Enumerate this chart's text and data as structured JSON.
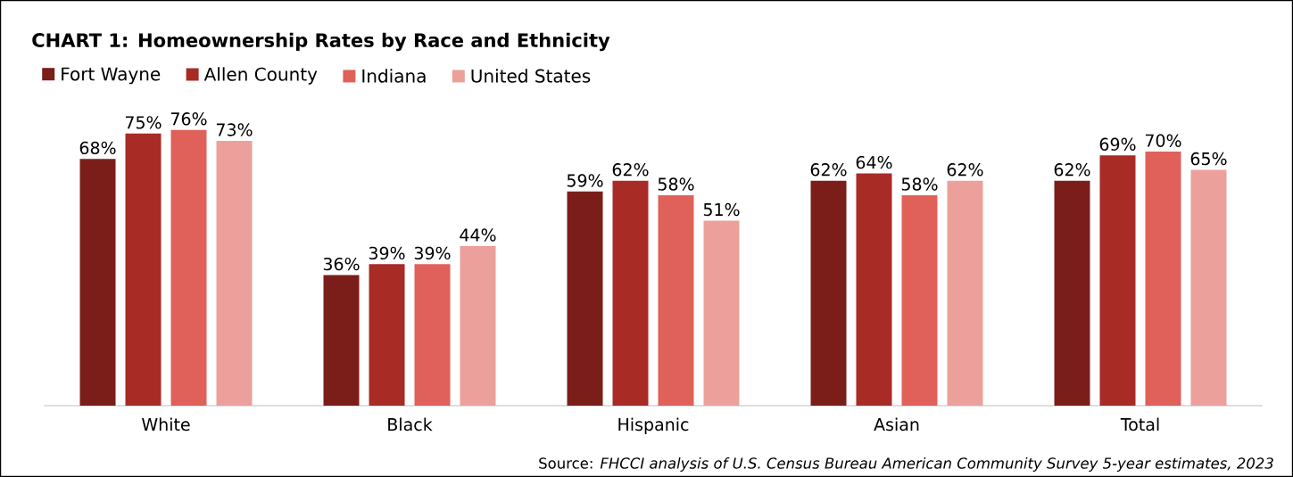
{
  "chart_data": {
    "type": "bar",
    "title": "CHART 1: Homeownership Rates by Race and Ethnicity",
    "categories": [
      "White",
      "Black",
      "Hispanic",
      "Asian",
      "Total"
    ],
    "series": [
      {
        "name": "Fort Wayne",
        "color": "#7b1e1a",
        "values": [
          68,
          36,
          59,
          62,
          62
        ],
        "value_labels": [
          "68%",
          "36%",
          "59%",
          "62%",
          "62%"
        ]
      },
      {
        "name": "Allen County",
        "color": "#a82b26",
        "values": [
          75,
          39,
          62,
          64,
          69
        ],
        "value_labels": [
          "75%",
          "39%",
          "62%",
          "64%",
          "69%"
        ]
      },
      {
        "name": "Indiana",
        "color": "#e0605a",
        "values": [
          76,
          39,
          58,
          58,
          70
        ],
        "value_labels": [
          "76%",
          "39%",
          "58%",
          "58%",
          "70%"
        ]
      },
      {
        "name": "United States",
        "color": "#eca09b",
        "values": [
          73,
          44,
          51,
          62,
          65
        ],
        "value_labels": [
          "73%",
          "44%",
          "51%",
          "62%",
          "65%"
        ]
      }
    ],
    "legend": "top left",
    "annotations": [
      "Source: *FHCCI analysis of U.S. Census Bureau American Community Survey 5-year estimates, 2023*"
    ]
  }
}
